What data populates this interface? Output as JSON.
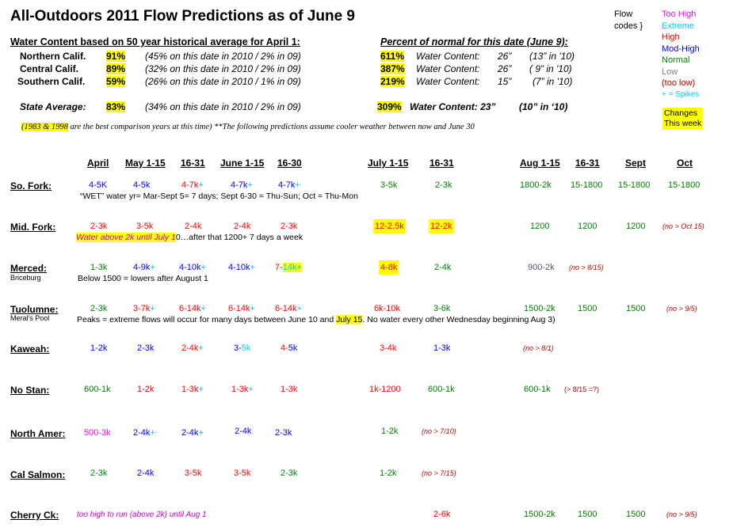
{
  "title": "All-Outdoors 2011 Flow Predictions as of June 9",
  "legend": {
    "label_line1": "Flow",
    "label_line2": "codes }",
    "items": [
      {
        "text": "Too High",
        "color": "#ff00ff"
      },
      {
        "text": "Extreme",
        "color": "#00ccff"
      },
      {
        "text": "High",
        "color": "#ff0000"
      },
      {
        "text": "Mod-High",
        "color": "#0000ff"
      },
      {
        "text": "Normal",
        "color": "#008000"
      },
      {
        "text": "Low",
        "color": "#808080"
      },
      {
        "text": "(too low)",
        "color": "#c00000"
      },
      {
        "text": "+ = Spikes",
        "color": "#00ccff"
      }
    ],
    "changes_line1": "Changes",
    "changes_line2": "This week"
  },
  "water_content": {
    "heading": "Water Content based on 50 year historical average for April 1:",
    "rows": [
      {
        "region": "Northern Calif.",
        "pct": "91%",
        "note": "(45% on this date in 2010 / 2% in 09)"
      },
      {
        "region": "Central Calif.",
        "pct": "89%",
        "note": "(32% on this date in 2010 / 2% in 09)"
      },
      {
        "region": "Southern Calif.",
        "pct": "59%",
        "note": "(26% on this date in 2010 / 1% in 09)"
      }
    ],
    "state_label": "State Average:",
    "state_pct": "83%",
    "state_note": "(34% on this date in 2010 / 2% in 09)"
  },
  "percent_normal": {
    "heading": "Percent of normal for this date (June 9):",
    "rows": [
      {
        "pct": "611%",
        "label": "Water Content:",
        "value": "26”",
        "prev": "(13” in '10)"
      },
      {
        "pct": "387%",
        "label": "Water Content:",
        "value": "26”",
        "prev": "( 9” in '10)"
      },
      {
        "pct": "219%",
        "label": "Water Content:",
        "value": "15”",
        "prev": "(7” in '10)"
      }
    ],
    "state_pct": "309%",
    "state_label": "Water Content: 23”",
    "state_prev": "(10” in ‘10)"
  },
  "footnote_years": "(1983 & 1998",
  "footnote_rest": " are the best comparison years at this time)  **The following predictions assume cooler weather between now and June 30",
  "columns": [
    "April",
    "May 1-15",
    "16-31",
    "June 1-15",
    "16-30",
    "July 1-15",
    "16-31",
    "Aug 1-15",
    "16-31",
    "Sept",
    "Oct"
  ],
  "rivers": [
    {
      "name": "So. Fork:",
      "sub": "",
      "cells": [
        "4-5K",
        "4-5k",
        "4-7k+",
        "4-7k+",
        "4-7k+",
        "3-5k",
        "2-3k",
        "1800-2k",
        "15-1800",
        "15-1800",
        "15-1800"
      ],
      "note": "“WET” water yr= Mar-Sept 5= 7 days; Sept 6-30 = Thu-Sun; Oct = Thu-Mon"
    },
    {
      "name": "Mid. Fork:",
      "sub": "",
      "cells": [
        "2-3k",
        "3-5k",
        "2-4k",
        "2-4k",
        "2-3k",
        "12-2.5k",
        "12-2k",
        "1200",
        "1200",
        "1200",
        "(no > Oct 15)"
      ],
      "note_hl": "Water above 2k until July 1",
      "note_rest": "0…after that 1200+  7 days a week"
    },
    {
      "name": "Merced:",
      "sub": "Briceburg",
      "cells": [
        "1-3k",
        "4-9k+",
        "4-10k+",
        "4-10k+",
        "7-14k+",
        "4-8k",
        "2-4k",
        "900-2k",
        "(no > 8/15)"
      ],
      "note": "Below 1500 = lowers after August 1"
    },
    {
      "name": "Tuolumne:",
      "sub": "Meral's Pool",
      "cells": [
        "2-3k",
        "3-7k+",
        "6-14k+",
        "6-14k+",
        "6-14k+",
        "6k-10k",
        "3-6k",
        "1500-2k",
        "1500",
        "1500",
        "(no > 9/5)"
      ],
      "note_a": "Peaks =  extreme flows will occur for many days between June 10 and ",
      "note_hl": "July 15",
      "note_b": ".  No water every other Wednesday beginning Aug 3)"
    },
    {
      "name": "Kaweah:",
      "sub": "",
      "cells": [
        "1-2k",
        "2-3k",
        "2-4k+",
        "3-5k",
        "4-5k",
        "3-4k",
        "1-3k",
        "(no > 8/1)"
      ]
    },
    {
      "name": "No Stan:",
      "sub": "",
      "cells": [
        "600-1k",
        "1-2k",
        "1-3k+",
        "1-3k+",
        "1-3k",
        "1k-1200",
        "600-1k",
        "600-1k",
        "(> 8/15 =?)"
      ]
    },
    {
      "name": "North Amer:",
      "sub": "",
      "cells": [
        "500-3k",
        "2-4k+",
        "2-4k+",
        "2-4k",
        "2-3k",
        "1-2k",
        "(no > 7/10)"
      ]
    },
    {
      "name": "Cal Salmon:",
      "sub": "",
      "cells": [
        "2-3k",
        "2-4k",
        "3-5k",
        "3-5k",
        "2-3k",
        "1-2k",
        "(no > 7/15)"
      ]
    },
    {
      "name": "Cherry Ck:",
      "sub": "",
      "note": "too high to run (above 2k) until Aug 1",
      "cells": [
        "2-6k",
        "1500-2k",
        "1500",
        "1500",
        "(no > 9/5)"
      ]
    }
  ]
}
